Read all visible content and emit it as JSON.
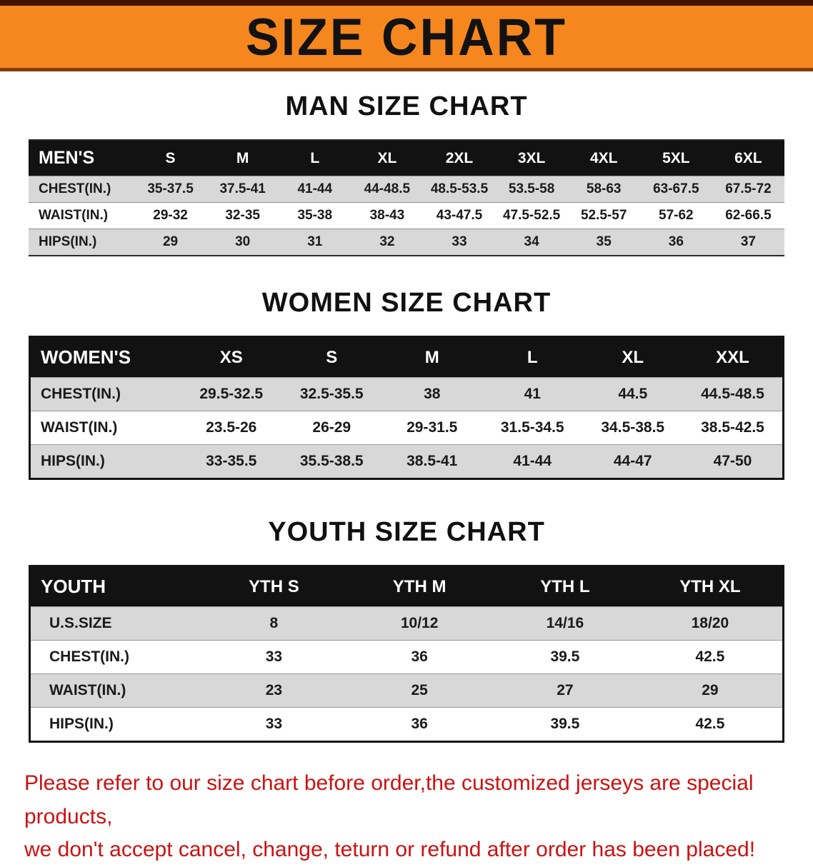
{
  "banner": {
    "title": "SIZE CHART"
  },
  "colors": {
    "banner_bg": "#f6871f",
    "table_header_bg": "#121212",
    "stripe_row_bg": "#d8d8d8",
    "disclaimer_text": "#cc1111"
  },
  "sections": [
    {
      "heading": "MAN SIZE CHART",
      "header_label": "MEN'S",
      "columns": [
        "S",
        "M",
        "L",
        "XL",
        "2XL",
        "3XL",
        "4XL",
        "5XL",
        "6XL"
      ],
      "rows": [
        {
          "label": "CHEST(IN.)",
          "values": [
            "35-37.5",
            "37.5-41",
            "41-44",
            "44-48.5",
            "48.5-53.5",
            "53.5-58",
            "58-63",
            "63-67.5",
            "67.5-72"
          ]
        },
        {
          "label": "WAIST(IN.)",
          "values": [
            "29-32",
            "32-35",
            "35-38",
            "38-43",
            "43-47.5",
            "47.5-52.5",
            "52.5-57",
            "57-62",
            "62-66.5"
          ]
        },
        {
          "label": "HIPS(IN.)",
          "values": [
            "29",
            "30",
            "31",
            "32",
            "33",
            "34",
            "35",
            "36",
            "37"
          ]
        }
      ]
    },
    {
      "heading": "WOMEN SIZE CHART",
      "header_label": "WOMEN'S",
      "columns": [
        "XS",
        "S",
        "M",
        "L",
        "XL",
        "XXL"
      ],
      "rows": [
        {
          "label": "CHEST(IN.)",
          "values": [
            "29.5-32.5",
            "32.5-35.5",
            "38",
            "41",
            "44.5",
            "44.5-48.5"
          ]
        },
        {
          "label": "WAIST(IN.)",
          "values": [
            "23.5-26",
            "26-29",
            "29-31.5",
            "31.5-34.5",
            "34.5-38.5",
            "38.5-42.5"
          ]
        },
        {
          "label": "HIPS(IN.)",
          "values": [
            "33-35.5",
            "35.5-38.5",
            "38.5-41",
            "41-44",
            "44-47",
            "47-50"
          ]
        }
      ]
    },
    {
      "heading": "YOUTH SIZE CHART",
      "header_label": "YOUTH",
      "columns": [
        "YTH S",
        "YTH M",
        "YTH L",
        "YTH XL"
      ],
      "rows": [
        {
          "label": "U.S.SIZE",
          "values": [
            "8",
            "10/12",
            "14/16",
            "18/20"
          ]
        },
        {
          "label": "CHEST(IN.)",
          "values": [
            "33",
            "36",
            "39.5",
            "42.5"
          ]
        },
        {
          "label": "WAIST(IN.)",
          "values": [
            "23",
            "25",
            "27",
            "29"
          ]
        },
        {
          "label": "HIPS(IN.)",
          "values": [
            "33",
            "36",
            "39.5",
            "42.5"
          ]
        }
      ]
    }
  ],
  "disclaimer": {
    "line1": "Please refer to our size chart before order,the customized jerseys are special products,",
    "line2": "we don't accept cancel, change, teturn or refund after order has been placed!"
  }
}
